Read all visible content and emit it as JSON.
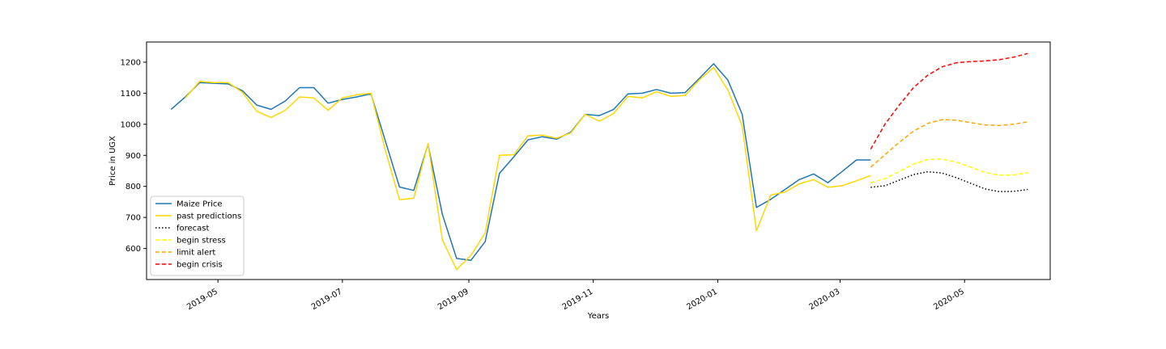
{
  "chart_data": {
    "type": "line",
    "title": "",
    "xlabel": "Years",
    "ylabel": "Price in UGX",
    "x_type": "date",
    "xlim": [
      "2019-03-27",
      "2020-06-12"
    ],
    "ylim": [
      500,
      1265
    ],
    "x_ticks": [
      {
        "date": "2019-05-01",
        "label": "2019-05"
      },
      {
        "date": "2019-07-01",
        "label": "2019-07"
      },
      {
        "date": "2019-09-01",
        "label": "2019-09"
      },
      {
        "date": "2019-11-01",
        "label": "2019-11"
      },
      {
        "date": "2020-01-01",
        "label": "2020-01"
      },
      {
        "date": "2020-03-01",
        "label": "2020-03"
      },
      {
        "date": "2020-05-01",
        "label": "2020-05"
      }
    ],
    "y_ticks": [
      600,
      700,
      800,
      900,
      1000,
      1100,
      1200
    ],
    "grid": false,
    "legend_position": "lower-left",
    "series": [
      {
        "name": "Maize Price",
        "color": "#1f77b4",
        "style": "solid",
        "x": [
          "2019-04-08",
          "2019-04-15",
          "2019-04-22",
          "2019-04-29",
          "2019-05-06",
          "2019-05-13",
          "2019-05-20",
          "2019-05-27",
          "2019-06-03",
          "2019-06-10",
          "2019-06-17",
          "2019-06-24",
          "2019-07-01",
          "2019-07-08",
          "2019-07-15",
          "2019-07-22",
          "2019-07-29",
          "2019-08-05",
          "2019-08-12",
          "2019-08-19",
          "2019-08-26",
          "2019-09-02",
          "2019-09-09",
          "2019-09-16",
          "2019-09-23",
          "2019-09-30",
          "2019-10-07",
          "2019-10-14",
          "2019-10-21",
          "2019-10-28",
          "2019-11-04",
          "2019-11-11",
          "2019-11-18",
          "2019-11-25",
          "2019-12-02",
          "2019-12-09",
          "2019-12-16",
          "2019-12-23",
          "2019-12-30",
          "2020-01-06",
          "2020-01-13",
          "2020-01-20",
          "2020-01-27",
          "2020-02-03",
          "2020-02-10",
          "2020-02-17",
          "2020-02-24",
          "2020-03-02",
          "2020-03-09",
          "2020-03-16"
        ],
        "values": [
          1048,
          1088,
          1134,
          1132,
          1130,
          1108,
          1062,
          1048,
          1075,
          1118,
          1118,
          1068,
          1080,
          1088,
          1098,
          948,
          798,
          787,
          935,
          710,
          568,
          562,
          622,
          842,
          895,
          950,
          960,
          952,
          975,
          1032,
          1028,
          1048,
          1098,
          1100,
          1112,
          1100,
          1102,
          1148,
          1195,
          1142,
          1032,
          732,
          758,
          790,
          822,
          840,
          812,
          848,
          885,
          885
        ]
      },
      {
        "name": "past predictions",
        "color": "#ffd700",
        "style": "solid",
        "x": [
          "2019-04-08",
          "2019-04-15",
          "2019-04-22",
          "2019-04-29",
          "2019-05-06",
          "2019-05-13",
          "2019-05-20",
          "2019-05-27",
          "2019-06-03",
          "2019-06-10",
          "2019-06-17",
          "2019-06-24",
          "2019-07-01",
          "2019-07-08",
          "2019-07-15",
          "2019-07-22",
          "2019-07-29",
          "2019-08-05",
          "2019-08-12",
          "2019-08-19",
          "2019-08-26",
          "2019-09-02",
          "2019-09-09",
          "2019-09-16",
          "2019-09-23",
          "2019-09-30",
          "2019-10-07",
          "2019-10-14",
          "2019-10-21",
          "2019-10-28",
          "2019-11-04",
          "2019-11-11",
          "2019-11-18",
          "2019-11-25",
          "2019-12-02",
          "2019-12-09",
          "2019-12-16",
          "2019-12-23",
          "2019-12-30",
          "2020-01-06",
          "2020-01-13",
          "2020-01-20",
          "2020-01-27",
          "2020-02-03",
          "2020-02-10",
          "2020-02-17",
          "2020-02-24",
          "2020-03-02",
          "2020-03-09",
          "2020-03-16"
        ],
        "values": [
          null,
          1085,
          1138,
          1134,
          1134,
          1103,
          1042,
          1022,
          1045,
          1088,
          1085,
          1045,
          1085,
          1095,
          1100,
          918,
          757,
          762,
          938,
          628,
          532,
          578,
          650,
          900,
          902,
          963,
          965,
          955,
          972,
          1032,
          1010,
          1035,
          1090,
          1085,
          1105,
          1090,
          1093,
          1143,
          1183,
          1110,
          995,
          657,
          772,
          782,
          808,
          822,
          797,
          802,
          818,
          835
        ]
      },
      {
        "name": "forecast",
        "color": "#000000",
        "style": "dotted",
        "x": [
          "2020-03-16",
          "2020-03-23",
          "2020-03-30",
          "2020-04-06",
          "2020-04-13",
          "2020-04-20",
          "2020-04-27",
          "2020-05-04",
          "2020-05-11",
          "2020-05-18",
          "2020-05-25",
          "2020-06-01"
        ],
        "values": [
          797,
          802,
          820,
          838,
          847,
          843,
          828,
          810,
          792,
          783,
          784,
          790
        ]
      },
      {
        "name": "begin stress",
        "color": "#ffff00",
        "style": "dashed",
        "x": [
          "2020-03-16",
          "2020-03-23",
          "2020-03-30",
          "2020-04-06",
          "2020-04-13",
          "2020-04-20",
          "2020-04-27",
          "2020-05-04",
          "2020-05-11",
          "2020-05-18",
          "2020-05-25",
          "2020-06-01"
        ],
        "values": [
          812,
          825,
          848,
          872,
          887,
          888,
          878,
          862,
          845,
          836,
          837,
          844
        ]
      },
      {
        "name": "limit alert",
        "color": "#ffa500",
        "style": "dashed",
        "x": [
          "2020-03-16",
          "2020-03-23",
          "2020-03-30",
          "2020-04-06",
          "2020-04-13",
          "2020-04-20",
          "2020-04-27",
          "2020-05-04",
          "2020-05-11",
          "2020-05-18",
          "2020-05-25",
          "2020-06-01"
        ],
        "values": [
          862,
          902,
          942,
          978,
          1003,
          1015,
          1013,
          1005,
          998,
          996,
          1000,
          1008
        ]
      },
      {
        "name": "begin crisis",
        "color": "#ff0000",
        "style": "dashed",
        "x": [
          "2020-03-16",
          "2020-03-23",
          "2020-03-30",
          "2020-04-06",
          "2020-04-13",
          "2020-04-20",
          "2020-04-27",
          "2020-05-04",
          "2020-05-11",
          "2020-05-18",
          "2020-05-25",
          "2020-06-01"
        ],
        "values": [
          920,
          1000,
          1062,
          1118,
          1158,
          1185,
          1198,
          1202,
          1204,
          1208,
          1216,
          1228
        ]
      }
    ]
  }
}
